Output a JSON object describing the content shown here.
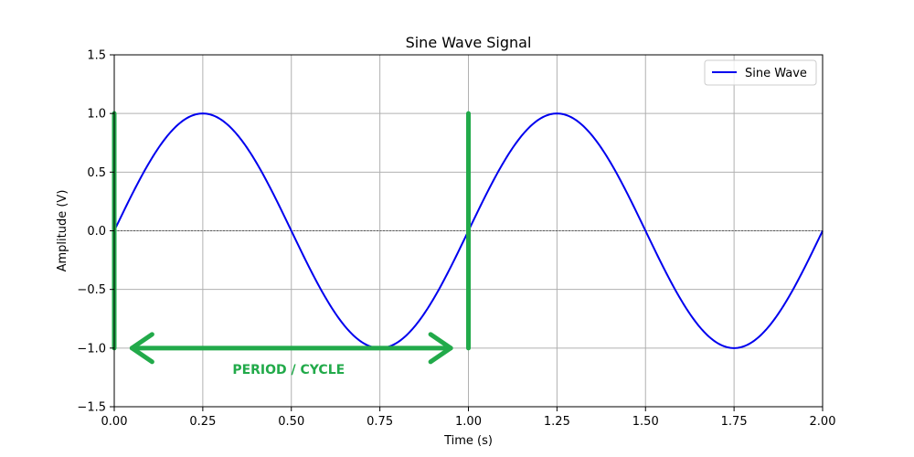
{
  "chart_data": {
    "type": "line",
    "title": "Sine Wave Signal",
    "xlabel": "Time (s)",
    "ylabel": "Amplitude (V)",
    "xlim": [
      0,
      2
    ],
    "ylim": [
      -1.5,
      1.5
    ],
    "x_ticks": [
      0.0,
      0.25,
      0.5,
      0.75,
      1.0,
      1.25,
      1.5,
      1.75,
      2.0
    ],
    "x_tick_labels": [
      "0.00",
      "0.25",
      "0.50",
      "0.75",
      "1.00",
      "1.25",
      "1.50",
      "1.75",
      "2.00"
    ],
    "y_ticks": [
      -1.5,
      -1.0,
      -0.5,
      0.0,
      0.5,
      1.0,
      1.5
    ],
    "y_tick_labels": [
      "−1.5",
      "−1.0",
      "−0.5",
      "0.0",
      "0.5",
      "1.0",
      "1.5"
    ],
    "grid": true,
    "legend_position": "top-right",
    "series": [
      {
        "name": "Sine Wave",
        "color": "#0000ee",
        "frequency_hz": 1,
        "amplitude": 1,
        "x": [
          0.0,
          0.25,
          0.5,
          0.75,
          1.0,
          1.25,
          1.5,
          1.75,
          2.0
        ],
        "y": [
          0.0,
          1.0,
          0.0,
          -1.0,
          0.0,
          1.0,
          0.0,
          -1.0,
          0.0
        ]
      }
    ],
    "reference_line": {
      "y": 0.0,
      "style": "dashed",
      "color": "#000000"
    },
    "annotations": {
      "color": "#22aa4a",
      "period_markers": [
        {
          "x": 0.0,
          "y_from": -1.0,
          "y_to": 1.0
        },
        {
          "x": 1.0,
          "y_from": -1.0,
          "y_to": 1.0
        }
      ],
      "arrow": {
        "x_from": 0.05,
        "x_to": 0.95,
        "y": -1.0
      },
      "label": {
        "text": "PERIOD / CYCLE",
        "x": 0.5,
        "y": -1.18
      }
    }
  }
}
